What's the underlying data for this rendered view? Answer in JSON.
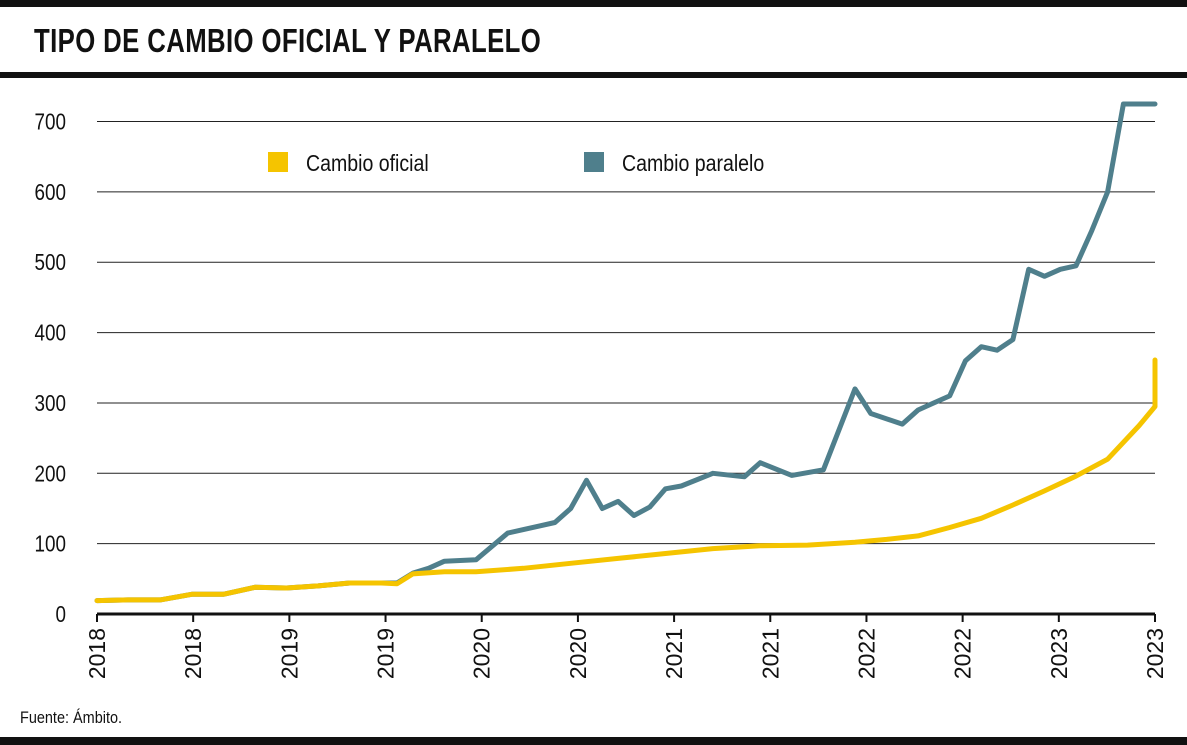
{
  "header": {
    "title": "TIPO DE CAMBIO OFICIAL Y PARALELO"
  },
  "footer": {
    "source": "Fuente: Ámbito."
  },
  "chart_data": {
    "type": "line",
    "title": "TIPO DE CAMBIO OFICIAL Y PARALELO",
    "xlabel": "",
    "ylabel": "",
    "ylim": [
      0,
      720
    ],
    "yticks": [
      0,
      100,
      200,
      300,
      400,
      500,
      600,
      700
    ],
    "xtick_labels": [
      "2018",
      "2018",
      "2019",
      "2019",
      "2020",
      "2020",
      "2021",
      "2021",
      "2022",
      "2022",
      "2023",
      "2023"
    ],
    "xlim": [
      "2018-01",
      "2023-08"
    ],
    "grid": "horizontal",
    "legend": "top",
    "series": [
      {
        "name": "Cambio oficial",
        "color": "#F5C400",
        "x": [
          "2018-01",
          "2018-03",
          "2018-05",
          "2018-07",
          "2018-09",
          "2018-11",
          "2019-01",
          "2019-03",
          "2019-05",
          "2019-07",
          "2019-08",
          "2019-09",
          "2019-11",
          "2020-01",
          "2020-04",
          "2020-07",
          "2020-10",
          "2021-01",
          "2021-04",
          "2021-07",
          "2021-10",
          "2022-01",
          "2022-03",
          "2022-05",
          "2022-07",
          "2022-09",
          "2022-11",
          "2023-01",
          "2023-03",
          "2023-05",
          "2023-07",
          "2023-08",
          "2023-08"
        ],
        "values": [
          19,
          20,
          20,
          28,
          28,
          38,
          37,
          40,
          44,
          44,
          43,
          57,
          60,
          60,
          65,
          72,
          79,
          86,
          93,
          97,
          98,
          102,
          106,
          111,
          123,
          136,
          155,
          175,
          196,
          220,
          268,
          295,
          361
        ]
      },
      {
        "name": "Cambio paralelo",
        "color": "#4F7F8C",
        "x": [
          "2018-01",
          "2018-03",
          "2018-05",
          "2018-07",
          "2018-09",
          "2018-11",
          "2019-01",
          "2019-03",
          "2019-05",
          "2019-07",
          "2019-08",
          "2019-09",
          "2019-10",
          "2019-11",
          "2020-01",
          "2020-03",
          "2020-04",
          "2020-05",
          "2020-06",
          "2020-07",
          "2020-08",
          "2020-09",
          "2020-10",
          "2020-11",
          "2020-12",
          "2021-01",
          "2021-02",
          "2021-04",
          "2021-06",
          "2021-07",
          "2021-09",
          "2021-11",
          "2022-01",
          "2022-02",
          "2022-04",
          "2022-05",
          "2022-06",
          "2022-07",
          "2022-08",
          "2022-09",
          "2022-10",
          "2022-11",
          "2022-12",
          "2023-01",
          "2023-02",
          "2023-03",
          "2023-04",
          "2023-05",
          "2023-06",
          "2023-07",
          "2023-08",
          "2023-08"
        ],
        "values": [
          19,
          20,
          20,
          28,
          28,
          38,
          37,
          40,
          44,
          44,
          44,
          58,
          65,
          75,
          77,
          115,
          120,
          125,
          130,
          150,
          190,
          150,
          160,
          140,
          152,
          178,
          182,
          200,
          195,
          215,
          197,
          205,
          320,
          285,
          270,
          290,
          300,
          310,
          360,
          380,
          375,
          390,
          490,
          480,
          490,
          495,
          545,
          600,
          725,
          725,
          725,
          725
        ]
      }
    ]
  }
}
